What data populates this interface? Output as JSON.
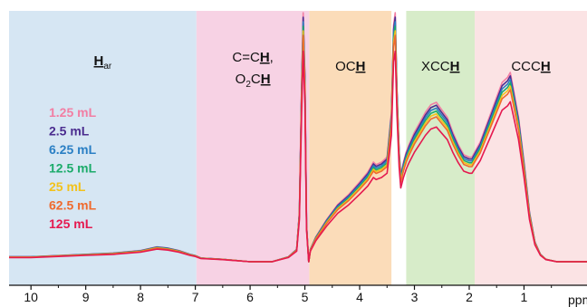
{
  "chart_data": {
    "type": "line",
    "xlabel": "ppm",
    "x_reversed": true,
    "xlim": [
      10.4,
      -0.15
    ],
    "xticks": [
      "10",
      "9",
      "8",
      "7",
      "6",
      "5",
      "4",
      "3",
      "2",
      "1"
    ],
    "xtick_values": [
      10,
      9,
      8,
      7,
      6,
      5,
      4,
      3,
      2,
      1
    ],
    "regions": [
      {
        "name": "aromatic",
        "from": 10.4,
        "to": 6.98,
        "color": "#d6e6f3",
        "label": [
          {
            "text": "H",
            "underline": true
          },
          {
            "text": "ar",
            "sub": true
          }
        ]
      },
      {
        "name": "olefinic",
        "from": 6.98,
        "to": 4.92,
        "color": "#f7d2e4",
        "label": [
          {
            "text": "C=C"
          },
          {
            "text": "H",
            "underline": true
          },
          {
            "text": ","
          },
          {
            "text": "O"
          },
          {
            "text": "2",
            "sub": true
          },
          {
            "text": "C"
          },
          {
            "text": "H",
            "underline": true
          }
        ]
      },
      {
        "name": "och",
        "from": 4.92,
        "to": 3.42,
        "color": "#fbdcb9",
        "label": [
          {
            "text": "OC"
          },
          {
            "text": "H",
            "underline": true
          }
        ]
      },
      {
        "name": "xcch",
        "from": 3.15,
        "to": 1.9,
        "color": "#d7ecc9",
        "label": [
          {
            "text": "XCC"
          },
          {
            "text": "H",
            "underline": true
          }
        ]
      },
      {
        "name": "ccch",
        "from": 1.9,
        "to": -0.15,
        "color": "#fbe3e4",
        "label": [
          {
            "text": "CCC"
          },
          {
            "text": "H",
            "underline": true
          }
        ]
      }
    ],
    "series": [
      {
        "name": "1.25 mL",
        "color": "#f27ea3",
        "scale": 1.1
      },
      {
        "name": "2.5 mL",
        "color": "#4b2d8f",
        "scale": 1.08
      },
      {
        "name": "6.25 mL",
        "color": "#2a7fc4",
        "scale": 1.06
      },
      {
        "name": "12.5 mL",
        "color": "#1bab6a",
        "scale": 1.04
      },
      {
        "name": "25 mL",
        "color": "#f2c21b",
        "scale": 1.02
      },
      {
        "name": "62.5 mL",
        "color": "#ef6a2e",
        "scale": 1.0
      },
      {
        "name": "125 mL",
        "color": "#e5194f",
        "scale": 0.93
      }
    ],
    "profile": {
      "x": [
        10.4,
        10.0,
        9.5,
        9.0,
        8.5,
        8.0,
        7.7,
        7.5,
        7.3,
        7.1,
        7.0,
        6.9,
        6.5,
        6.0,
        5.6,
        5.3,
        5.15,
        5.1,
        5.06,
        5.03,
        5.0,
        4.97,
        4.93,
        4.9,
        4.8,
        4.6,
        4.4,
        4.2,
        4.0,
        3.85,
        3.75,
        3.7,
        3.6,
        3.5,
        3.42,
        3.38,
        3.35,
        3.32,
        3.28,
        3.25,
        3.2,
        3.15,
        3.1,
        3.0,
        2.9,
        2.8,
        2.7,
        2.6,
        2.5,
        2.4,
        2.3,
        2.2,
        2.1,
        2.0,
        1.95,
        1.9,
        1.8,
        1.7,
        1.6,
        1.5,
        1.4,
        1.3,
        1.25,
        1.2,
        1.1,
        1.0,
        0.9,
        0.8,
        0.7,
        0.6,
        0.4,
        0.2,
        0.0,
        -0.15
      ],
      "y": [
        0.02,
        0.02,
        0.025,
        0.03,
        0.035,
        0.045,
        0.06,
        0.055,
        0.045,
        0.03,
        0.025,
        0.015,
        0.01,
        0.0,
        0.0,
        0.02,
        0.05,
        0.2,
        0.7,
        1.0,
        0.75,
        0.15,
        0.0,
        0.05,
        0.1,
        0.17,
        0.23,
        0.27,
        0.32,
        0.36,
        0.4,
        0.39,
        0.4,
        0.42,
        0.6,
        0.95,
        1.0,
        0.7,
        0.45,
        0.35,
        0.4,
        0.44,
        0.47,
        0.52,
        0.56,
        0.6,
        0.63,
        0.64,
        0.61,
        0.58,
        0.52,
        0.47,
        0.43,
        0.42,
        0.42,
        0.44,
        0.48,
        0.54,
        0.6,
        0.66,
        0.72,
        0.74,
        0.76,
        0.7,
        0.58,
        0.4,
        0.2,
        0.08,
        0.03,
        0.01,
        0.0,
        0.0,
        0.0,
        0.0
      ]
    }
  }
}
